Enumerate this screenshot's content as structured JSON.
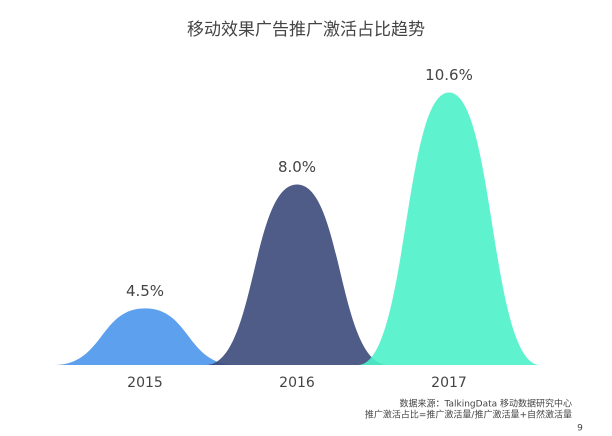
{
  "chart_data": {
    "type": "peak",
    "title": "移动效果广告推广激活占比趋势",
    "categories": [
      "2015",
      "2016",
      "2017"
    ],
    "values": [
      4.5,
      8.0,
      10.6
    ],
    "value_labels": [
      "4.5%",
      "8.0%",
      "10.6%"
    ],
    "colors": [
      "#4a96ec",
      "#3b4a7a",
      "#4df2c9"
    ],
    "ylim": [
      2.9,
      12
    ],
    "source": [
      "数据来源：TalkingData 移动数据研究中心",
      "推广激活占比=推广激活量/推广激活量+自然激活量"
    ],
    "page_number": "9"
  }
}
